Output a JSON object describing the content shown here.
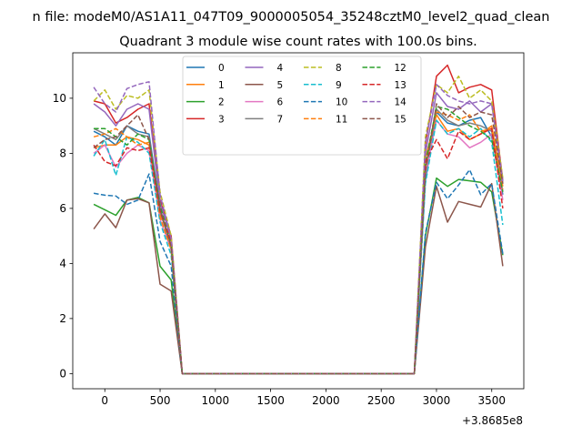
{
  "chart_data": {
    "type": "line",
    "suptitle": "n file: modeM0/AS1A11_047T09_9000005054_35248cztM0_level2_quad_clean",
    "title": "Quadrant 3 module wise count rates with 100.0s bins.",
    "xlabel": "",
    "ylabel": "",
    "offset_label": "+3.8685e8",
    "xlim": [
      -290,
      3790
    ],
    "ylim": [
      -0.55,
      11.65
    ],
    "xticks": [
      0,
      500,
      1000,
      1500,
      2000,
      2500,
      3000,
      3500
    ],
    "yticks": [
      0,
      2,
      4,
      6,
      8,
      10
    ],
    "grid": false,
    "legend": {
      "placement": "upper-center",
      "columns": 4
    },
    "x": [
      -100,
      0,
      100,
      200,
      300,
      400,
      500,
      600,
      700,
      800,
      2700,
      2800,
      2900,
      3000,
      3100,
      3200,
      3300,
      3400,
      3500,
      3600
    ],
    "series": [
      {
        "name": "0",
        "color": "#1f77b4",
        "style": "solid",
        "values": [
          8.8,
          8.6,
          8.3,
          9.0,
          8.8,
          8.7,
          6.0,
          4.5,
          0,
          0,
          0,
          0,
          7.0,
          9.5,
          9.1,
          9.0,
          9.2,
          9.3,
          8.6,
          6.5
        ]
      },
      {
        "name": "1",
        "color": "#ff7f0e",
        "style": "solid",
        "values": [
          8.2,
          8.3,
          8.3,
          8.6,
          8.5,
          8.3,
          5.8,
          4.8,
          0,
          0,
          0,
          0,
          7.8,
          9.4,
          8.8,
          8.9,
          8.5,
          8.7,
          9.0,
          6.8
        ]
      },
      {
        "name": "2",
        "color": "#2ca02c",
        "style": "solid",
        "values": [
          6.15,
          5.95,
          5.75,
          6.3,
          6.4,
          6.2,
          3.9,
          3.4,
          0,
          0,
          0,
          0,
          5.0,
          7.1,
          6.8,
          7.05,
          7.0,
          6.95,
          6.6,
          4.3
        ]
      },
      {
        "name": "3",
        "color": "#d62728",
        "style": "solid",
        "values": [
          9.9,
          9.8,
          9.1,
          9.3,
          9.6,
          9.8,
          6.3,
          5.0,
          0,
          0,
          0,
          0,
          8.3,
          10.8,
          11.2,
          10.2,
          10.4,
          10.5,
          10.3,
          7.0
        ]
      },
      {
        "name": "4",
        "color": "#9467bd",
        "style": "solid",
        "values": [
          9.8,
          9.5,
          9.0,
          9.6,
          9.8,
          9.6,
          6.2,
          4.9,
          0,
          0,
          0,
          0,
          8.0,
          10.2,
          9.7,
          9.6,
          9.9,
          9.5,
          9.8,
          6.9
        ]
      },
      {
        "name": "5",
        "color": "#8c564b",
        "style": "solid",
        "values": [
          5.25,
          5.8,
          5.3,
          6.3,
          6.35,
          6.2,
          3.25,
          3.0,
          0,
          0,
          0,
          0,
          4.6,
          6.8,
          5.5,
          6.25,
          6.15,
          6.05,
          6.9,
          3.9
        ]
      },
      {
        "name": "6",
        "color": "#e377c2",
        "style": "solid",
        "values": [
          8.0,
          8.3,
          7.5,
          8.0,
          8.3,
          8.1,
          5.6,
          4.5,
          0,
          0,
          0,
          0,
          7.2,
          9.2,
          8.7,
          8.6,
          8.2,
          8.4,
          8.7,
          6.3
        ]
      },
      {
        "name": "7",
        "color": "#7f7f7f",
        "style": "solid",
        "values": [
          8.9,
          8.7,
          8.5,
          9.0,
          8.7,
          8.6,
          5.9,
          4.6,
          0,
          0,
          0,
          0,
          7.4,
          9.6,
          9.2,
          9.0,
          9.1,
          9.0,
          8.8,
          6.6
        ]
      },
      {
        "name": "8",
        "color": "#bcbd22",
        "style": "dashed",
        "values": [
          9.9,
          10.3,
          9.6,
          10.1,
          10.0,
          10.3,
          6.6,
          5.0,
          0,
          0,
          0,
          0,
          8.6,
          10.5,
          10.2,
          10.8,
          10.0,
          10.3,
          9.9,
          7.1
        ]
      },
      {
        "name": "9",
        "color": "#17becf",
        "style": "dashed",
        "values": [
          7.9,
          8.5,
          7.2,
          8.6,
          8.4,
          8.0,
          5.5,
          4.3,
          0,
          0,
          0,
          0,
          6.9,
          9.2,
          8.7,
          8.9,
          8.6,
          8.9,
          8.4,
          5.4
        ]
      },
      {
        "name": "10",
        "color": "#1f77b4",
        "style": "dashed",
        "values": [
          6.55,
          6.48,
          6.45,
          6.15,
          6.3,
          7.25,
          4.8,
          3.9,
          0,
          0,
          0,
          0,
          5.1,
          6.95,
          6.35,
          6.85,
          7.4,
          6.5,
          6.9,
          4.35
        ]
      },
      {
        "name": "11",
        "color": "#ff7f0e",
        "style": "dashed",
        "values": [
          8.6,
          8.7,
          8.9,
          8.6,
          8.3,
          8.4,
          5.7,
          4.5,
          0,
          0,
          0,
          0,
          7.5,
          9.5,
          9.4,
          9.2,
          9.4,
          8.8,
          8.9,
          6.7
        ]
      },
      {
        "name": "12",
        "color": "#2ca02c",
        "style": "dashed",
        "values": [
          8.9,
          8.9,
          8.6,
          8.3,
          8.7,
          8.5,
          6.1,
          4.7,
          0,
          0,
          0,
          0,
          7.6,
          9.7,
          9.6,
          9.3,
          9.0,
          8.8,
          8.5,
          6.6
        ]
      },
      {
        "name": "13",
        "color": "#d62728",
        "style": "dashed",
        "values": [
          8.3,
          7.7,
          7.55,
          8.2,
          8.1,
          8.2,
          5.9,
          4.8,
          0,
          0,
          0,
          0,
          7.7,
          8.5,
          7.8,
          8.8,
          8.5,
          8.7,
          8.9,
          6.0
        ]
      },
      {
        "name": "14",
        "color": "#9467bd",
        "style": "dashed",
        "values": [
          10.4,
          9.8,
          9.5,
          10.35,
          10.5,
          10.6,
          6.5,
          4.9,
          0,
          0,
          0,
          0,
          8.4,
          10.5,
          10.1,
          9.9,
          9.8,
          9.9,
          9.8,
          7.0
        ]
      },
      {
        "name": "15",
        "color": "#8c564b",
        "style": "dashed",
        "values": [
          8.2,
          8.5,
          8.6,
          9.0,
          9.4,
          8.5,
          6.0,
          4.6,
          0,
          0,
          0,
          0,
          7.3,
          9.8,
          9.3,
          9.7,
          9.3,
          9.5,
          9.4,
          6.9
        ]
      }
    ]
  }
}
